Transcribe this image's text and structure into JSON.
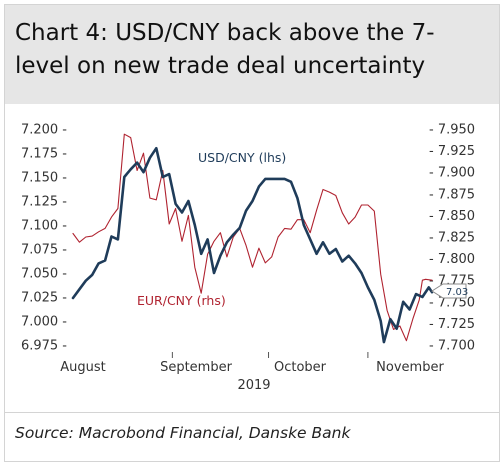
{
  "title": "Chart 4: USD/CNY back above the 7-level on new trade deal uncertainty",
  "source": "Source: Macrobond Financial, Danske Bank",
  "chart_data": {
    "type": "line",
    "year_label": "2019",
    "x_tick_labels": [
      "August",
      "September",
      "October",
      "November"
    ],
    "x_tick_dates": [
      "2019-08-01",
      "2019-09-01",
      "2019-10-01",
      "2019-11-01"
    ],
    "x_range": [
      "2019-08-01",
      "2019-11-21"
    ],
    "y_left": {
      "ylim": [
        6.975,
        7.2
      ],
      "ticks": [
        7.2,
        7.175,
        7.15,
        7.125,
        7.1,
        7.075,
        7.05,
        7.025,
        7.0,
        6.975
      ],
      "tick_labels": [
        "7.200",
        "7.175",
        "7.150",
        "7.125",
        "7.100",
        "7.075",
        "7.050",
        "7.025",
        "7.000",
        "6.975"
      ]
    },
    "y_right": {
      "ylim": [
        7.7,
        7.95
      ],
      "ticks": [
        7.95,
        7.925,
        7.9,
        7.875,
        7.85,
        7.825,
        7.8,
        7.775,
        7.75,
        7.725,
        7.7
      ],
      "tick_labels": [
        "7.950",
        "7.925",
        "7.900",
        "7.875",
        "7.850",
        "7.825",
        "7.800",
        "7.775",
        "7.750",
        "7.725",
        "7.700"
      ]
    },
    "grid": false,
    "series": [
      {
        "name": "USD/CNY (lhs)",
        "axis": "left",
        "color": "#1f3c5a",
        "points": [
          [
            "2019-08-01",
            7.024
          ],
          [
            "2019-08-03",
            7.033
          ],
          [
            "2019-08-05",
            7.042
          ],
          [
            "2019-08-07",
            7.048
          ],
          [
            "2019-08-09",
            7.06
          ],
          [
            "2019-08-11",
            7.063
          ],
          [
            "2019-08-13",
            7.088
          ],
          [
            "2019-08-15",
            7.085
          ],
          [
            "2019-08-17",
            7.15
          ],
          [
            "2019-08-19",
            7.158
          ],
          [
            "2019-08-21",
            7.165
          ],
          [
            "2019-08-23",
            7.155
          ],
          [
            "2019-08-25",
            7.17
          ],
          [
            "2019-08-27",
            7.18
          ],
          [
            "2019-08-29",
            7.15
          ],
          [
            "2019-08-31",
            7.153
          ],
          [
            "2019-09-02",
            7.122
          ],
          [
            "2019-09-04",
            7.113
          ],
          [
            "2019-09-06",
            7.125
          ],
          [
            "2019-09-08",
            7.1
          ],
          [
            "2019-09-10",
            7.07
          ],
          [
            "2019-09-12",
            7.085
          ],
          [
            "2019-09-14",
            7.05
          ],
          [
            "2019-09-16",
            7.068
          ],
          [
            "2019-09-18",
            7.082
          ],
          [
            "2019-09-20",
            7.09
          ],
          [
            "2019-09-22",
            7.097
          ],
          [
            "2019-09-24",
            7.115
          ],
          [
            "2019-09-26",
            7.125
          ],
          [
            "2019-09-28",
            7.14
          ],
          [
            "2019-09-30",
            7.148
          ],
          [
            "2019-10-02",
            7.148
          ],
          [
            "2019-10-04",
            7.148
          ],
          [
            "2019-10-06",
            7.148
          ],
          [
            "2019-10-08",
            7.145
          ],
          [
            "2019-10-10",
            7.128
          ],
          [
            "2019-10-12",
            7.1
          ],
          [
            "2019-10-14",
            7.085
          ],
          [
            "2019-10-16",
            7.07
          ],
          [
            "2019-10-18",
            7.082
          ],
          [
            "2019-10-20",
            7.07
          ],
          [
            "2019-10-22",
            7.075
          ],
          [
            "2019-10-24",
            7.062
          ],
          [
            "2019-10-26",
            7.068
          ],
          [
            "2019-10-28",
            7.06
          ],
          [
            "2019-10-30",
            7.05
          ],
          [
            "2019-11-01",
            7.035
          ],
          [
            "2019-11-03",
            7.022
          ],
          [
            "2019-11-05",
            7.0
          ],
          [
            "2019-11-06",
            6.978
          ],
          [
            "2019-11-08",
            7.002
          ],
          [
            "2019-11-10",
            6.992
          ],
          [
            "2019-11-12",
            7.02
          ],
          [
            "2019-11-14",
            7.012
          ],
          [
            "2019-11-16",
            7.028
          ],
          [
            "2019-11-18",
            7.025
          ],
          [
            "2019-11-20",
            7.035
          ],
          [
            "2019-11-21",
            7.03
          ]
        ]
      },
      {
        "name": "EUR/CNY (rhs)",
        "axis": "right",
        "color": "#b02330",
        "points": [
          [
            "2019-08-01",
            7.829
          ],
          [
            "2019-08-03",
            7.819
          ],
          [
            "2019-08-05",
            7.825
          ],
          [
            "2019-08-07",
            7.826
          ],
          [
            "2019-08-09",
            7.831
          ],
          [
            "2019-08-11",
            7.835
          ],
          [
            "2019-08-13",
            7.848
          ],
          [
            "2019-08-15",
            7.858
          ],
          [
            "2019-08-17",
            7.944
          ],
          [
            "2019-08-19",
            7.94
          ],
          [
            "2019-08-21",
            7.902
          ],
          [
            "2019-08-23",
            7.922
          ],
          [
            "2019-08-25",
            7.87
          ],
          [
            "2019-08-27",
            7.868
          ],
          [
            "2019-08-29",
            7.902
          ],
          [
            "2019-08-31",
            7.84
          ],
          [
            "2019-09-02",
            7.858
          ],
          [
            "2019-09-04",
            7.82
          ],
          [
            "2019-09-06",
            7.85
          ],
          [
            "2019-09-08",
            7.79
          ],
          [
            "2019-09-10",
            7.76
          ],
          [
            "2019-09-12",
            7.805
          ],
          [
            "2019-09-14",
            7.82
          ],
          [
            "2019-09-16",
            7.83
          ],
          [
            "2019-09-18",
            7.802
          ],
          [
            "2019-09-20",
            7.825
          ],
          [
            "2019-09-22",
            7.835
          ],
          [
            "2019-09-24",
            7.815
          ],
          [
            "2019-09-26",
            7.79
          ],
          [
            "2019-09-28",
            7.812
          ],
          [
            "2019-09-30",
            7.795
          ],
          [
            "2019-10-02",
            7.802
          ],
          [
            "2019-10-04",
            7.825
          ],
          [
            "2019-10-06",
            7.835
          ],
          [
            "2019-10-08",
            7.834
          ],
          [
            "2019-10-10",
            7.845
          ],
          [
            "2019-10-12",
            7.845
          ],
          [
            "2019-10-14",
            7.83
          ],
          [
            "2019-10-16",
            7.856
          ],
          [
            "2019-10-18",
            7.88
          ],
          [
            "2019-10-20",
            7.877
          ],
          [
            "2019-10-22",
            7.873
          ],
          [
            "2019-10-24",
            7.853
          ],
          [
            "2019-10-26",
            7.84
          ],
          [
            "2019-10-28",
            7.848
          ],
          [
            "2019-10-30",
            7.862
          ],
          [
            "2019-11-01",
            7.862
          ],
          [
            "2019-11-03",
            7.855
          ],
          [
            "2019-11-05",
            7.782
          ],
          [
            "2019-11-07",
            7.74
          ],
          [
            "2019-11-09",
            7.718
          ],
          [
            "2019-11-11",
            7.722
          ],
          [
            "2019-11-13",
            7.705
          ],
          [
            "2019-11-15",
            7.73
          ],
          [
            "2019-11-17",
            7.752
          ],
          [
            "2019-11-18",
            7.775
          ],
          [
            "2019-11-19",
            7.776
          ],
          [
            "2019-11-21",
            7.775
          ]
        ]
      }
    ],
    "annotations": [
      {
        "text": "USD/CNY (lhs)",
        "series": "USD/CNY (lhs)"
      },
      {
        "text": "EUR/CNY (rhs)",
        "series": "EUR/CNY (rhs)"
      },
      {
        "text": "7.03",
        "series": "USD/CNY (lhs)",
        "kind": "last-value-flag"
      }
    ]
  }
}
